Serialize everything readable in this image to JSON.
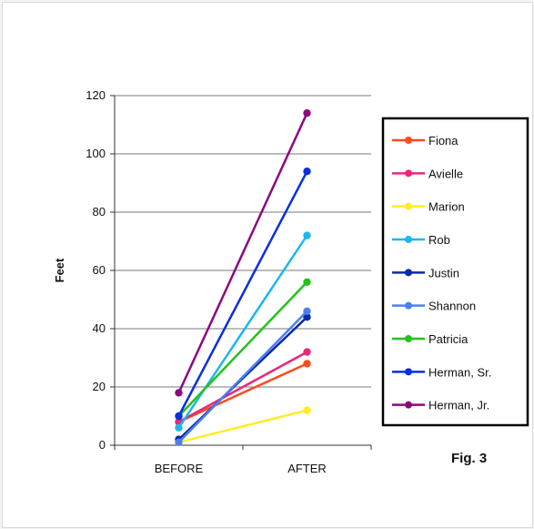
{
  "chart_data": {
    "type": "line",
    "categories": [
      "BEFORE",
      "AFTER"
    ],
    "ylabel": "Feet",
    "xlabel": "",
    "ylim": [
      0,
      120
    ],
    "yticks": [
      0,
      20,
      40,
      60,
      80,
      100,
      120
    ],
    "grid": "horizontal",
    "legend_position": "right",
    "annotation": "Fig. 3",
    "series": [
      {
        "name": "Fiona",
        "values": [
          8,
          28
        ],
        "color": "#ff4a1c"
      },
      {
        "name": "Avielle",
        "values": [
          8,
          32
        ],
        "color": "#e8287a"
      },
      {
        "name": "Marion",
        "values": [
          1,
          12
        ],
        "color": "#ffee22"
      },
      {
        "name": "Rob",
        "values": [
          6,
          72
        ],
        "color": "#1ab8ee"
      },
      {
        "name": "Justin",
        "values": [
          2,
          44
        ],
        "color": "#0b2aa8"
      },
      {
        "name": "Shannon",
        "values": [
          1,
          46
        ],
        "color": "#4d7ef0"
      },
      {
        "name": "Patricia",
        "values": [
          10,
          56
        ],
        "color": "#24c21c"
      },
      {
        "name": "Herman, Sr.",
        "values": [
          10,
          94
        ],
        "color": "#0a2ee0"
      },
      {
        "name": "Herman, Jr.",
        "values": [
          18,
          114
        ],
        "color": "#8a0a7e"
      }
    ]
  }
}
